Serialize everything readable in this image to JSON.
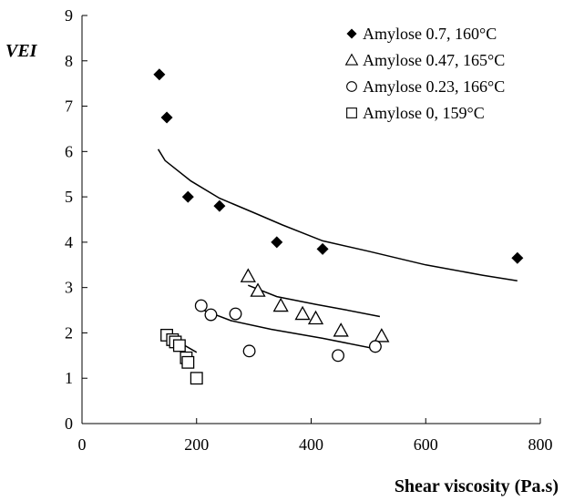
{
  "chart_data": {
    "type": "scatter",
    "title": "",
    "xlabel": "Shear viscosity (Pa.s)",
    "ylabel": "VEI",
    "xlim": [
      0,
      800
    ],
    "ylim": [
      0,
      9
    ],
    "xticks": [
      0,
      200,
      400,
      600,
      800
    ],
    "yticks": [
      0,
      1,
      2,
      3,
      4,
      5,
      6,
      7,
      8,
      9
    ],
    "grid": false,
    "legend_position": "top-right",
    "series": [
      {
        "name": "Amylose 0.7, 160°C",
        "marker": "filled-diamond",
        "points": [
          [
            135,
            7.7
          ],
          [
            148,
            6.75
          ],
          [
            185,
            5.0
          ],
          [
            240,
            4.8
          ],
          [
            340,
            4.0
          ],
          [
            420,
            3.85
          ],
          [
            760,
            3.65
          ]
        ],
        "trend": [
          [
            133,
            6.05
          ],
          [
            145,
            5.8
          ],
          [
            190,
            5.35
          ],
          [
            240,
            4.97
          ],
          [
            300,
            4.65
          ],
          [
            350,
            4.38
          ],
          [
            420,
            4.03
          ],
          [
            500,
            3.8
          ],
          [
            600,
            3.5
          ],
          [
            700,
            3.27
          ],
          [
            760,
            3.15
          ]
        ]
      },
      {
        "name": "Amylose 0.47, 165°C",
        "marker": "open-triangle",
        "points": [
          [
            290,
            3.25
          ],
          [
            307,
            2.93
          ],
          [
            347,
            2.6
          ],
          [
            385,
            2.42
          ],
          [
            408,
            2.32
          ],
          [
            452,
            2.05
          ],
          [
            523,
            1.93
          ]
        ],
        "trend": [
          [
            290,
            3.05
          ],
          [
            340,
            2.8
          ],
          [
            408,
            2.63
          ],
          [
            460,
            2.51
          ],
          [
            520,
            2.36
          ]
        ]
      },
      {
        "name": "Amylose 0.23, 166°C",
        "marker": "open-circle",
        "points": [
          [
            208,
            2.6
          ],
          [
            225,
            2.4
          ],
          [
            268,
            2.42
          ],
          [
            292,
            1.6
          ],
          [
            447,
            1.5
          ],
          [
            512,
            1.7
          ]
        ],
        "trend": [
          [
            208,
            2.52
          ],
          [
            260,
            2.27
          ],
          [
            330,
            2.08
          ],
          [
            420,
            1.88
          ],
          [
            512,
            1.65
          ]
        ]
      },
      {
        "name": "Amylose 0, 159°C",
        "marker": "open-square",
        "points": [
          [
            148,
            1.95
          ],
          [
            158,
            1.85
          ],
          [
            163,
            1.8
          ],
          [
            170,
            1.72
          ],
          [
            182,
            1.45
          ],
          [
            185,
            1.35
          ],
          [
            200,
            1.0
          ]
        ],
        "trend": [
          [
            148,
            1.95
          ],
          [
            200,
            1.57
          ]
        ]
      }
    ]
  }
}
